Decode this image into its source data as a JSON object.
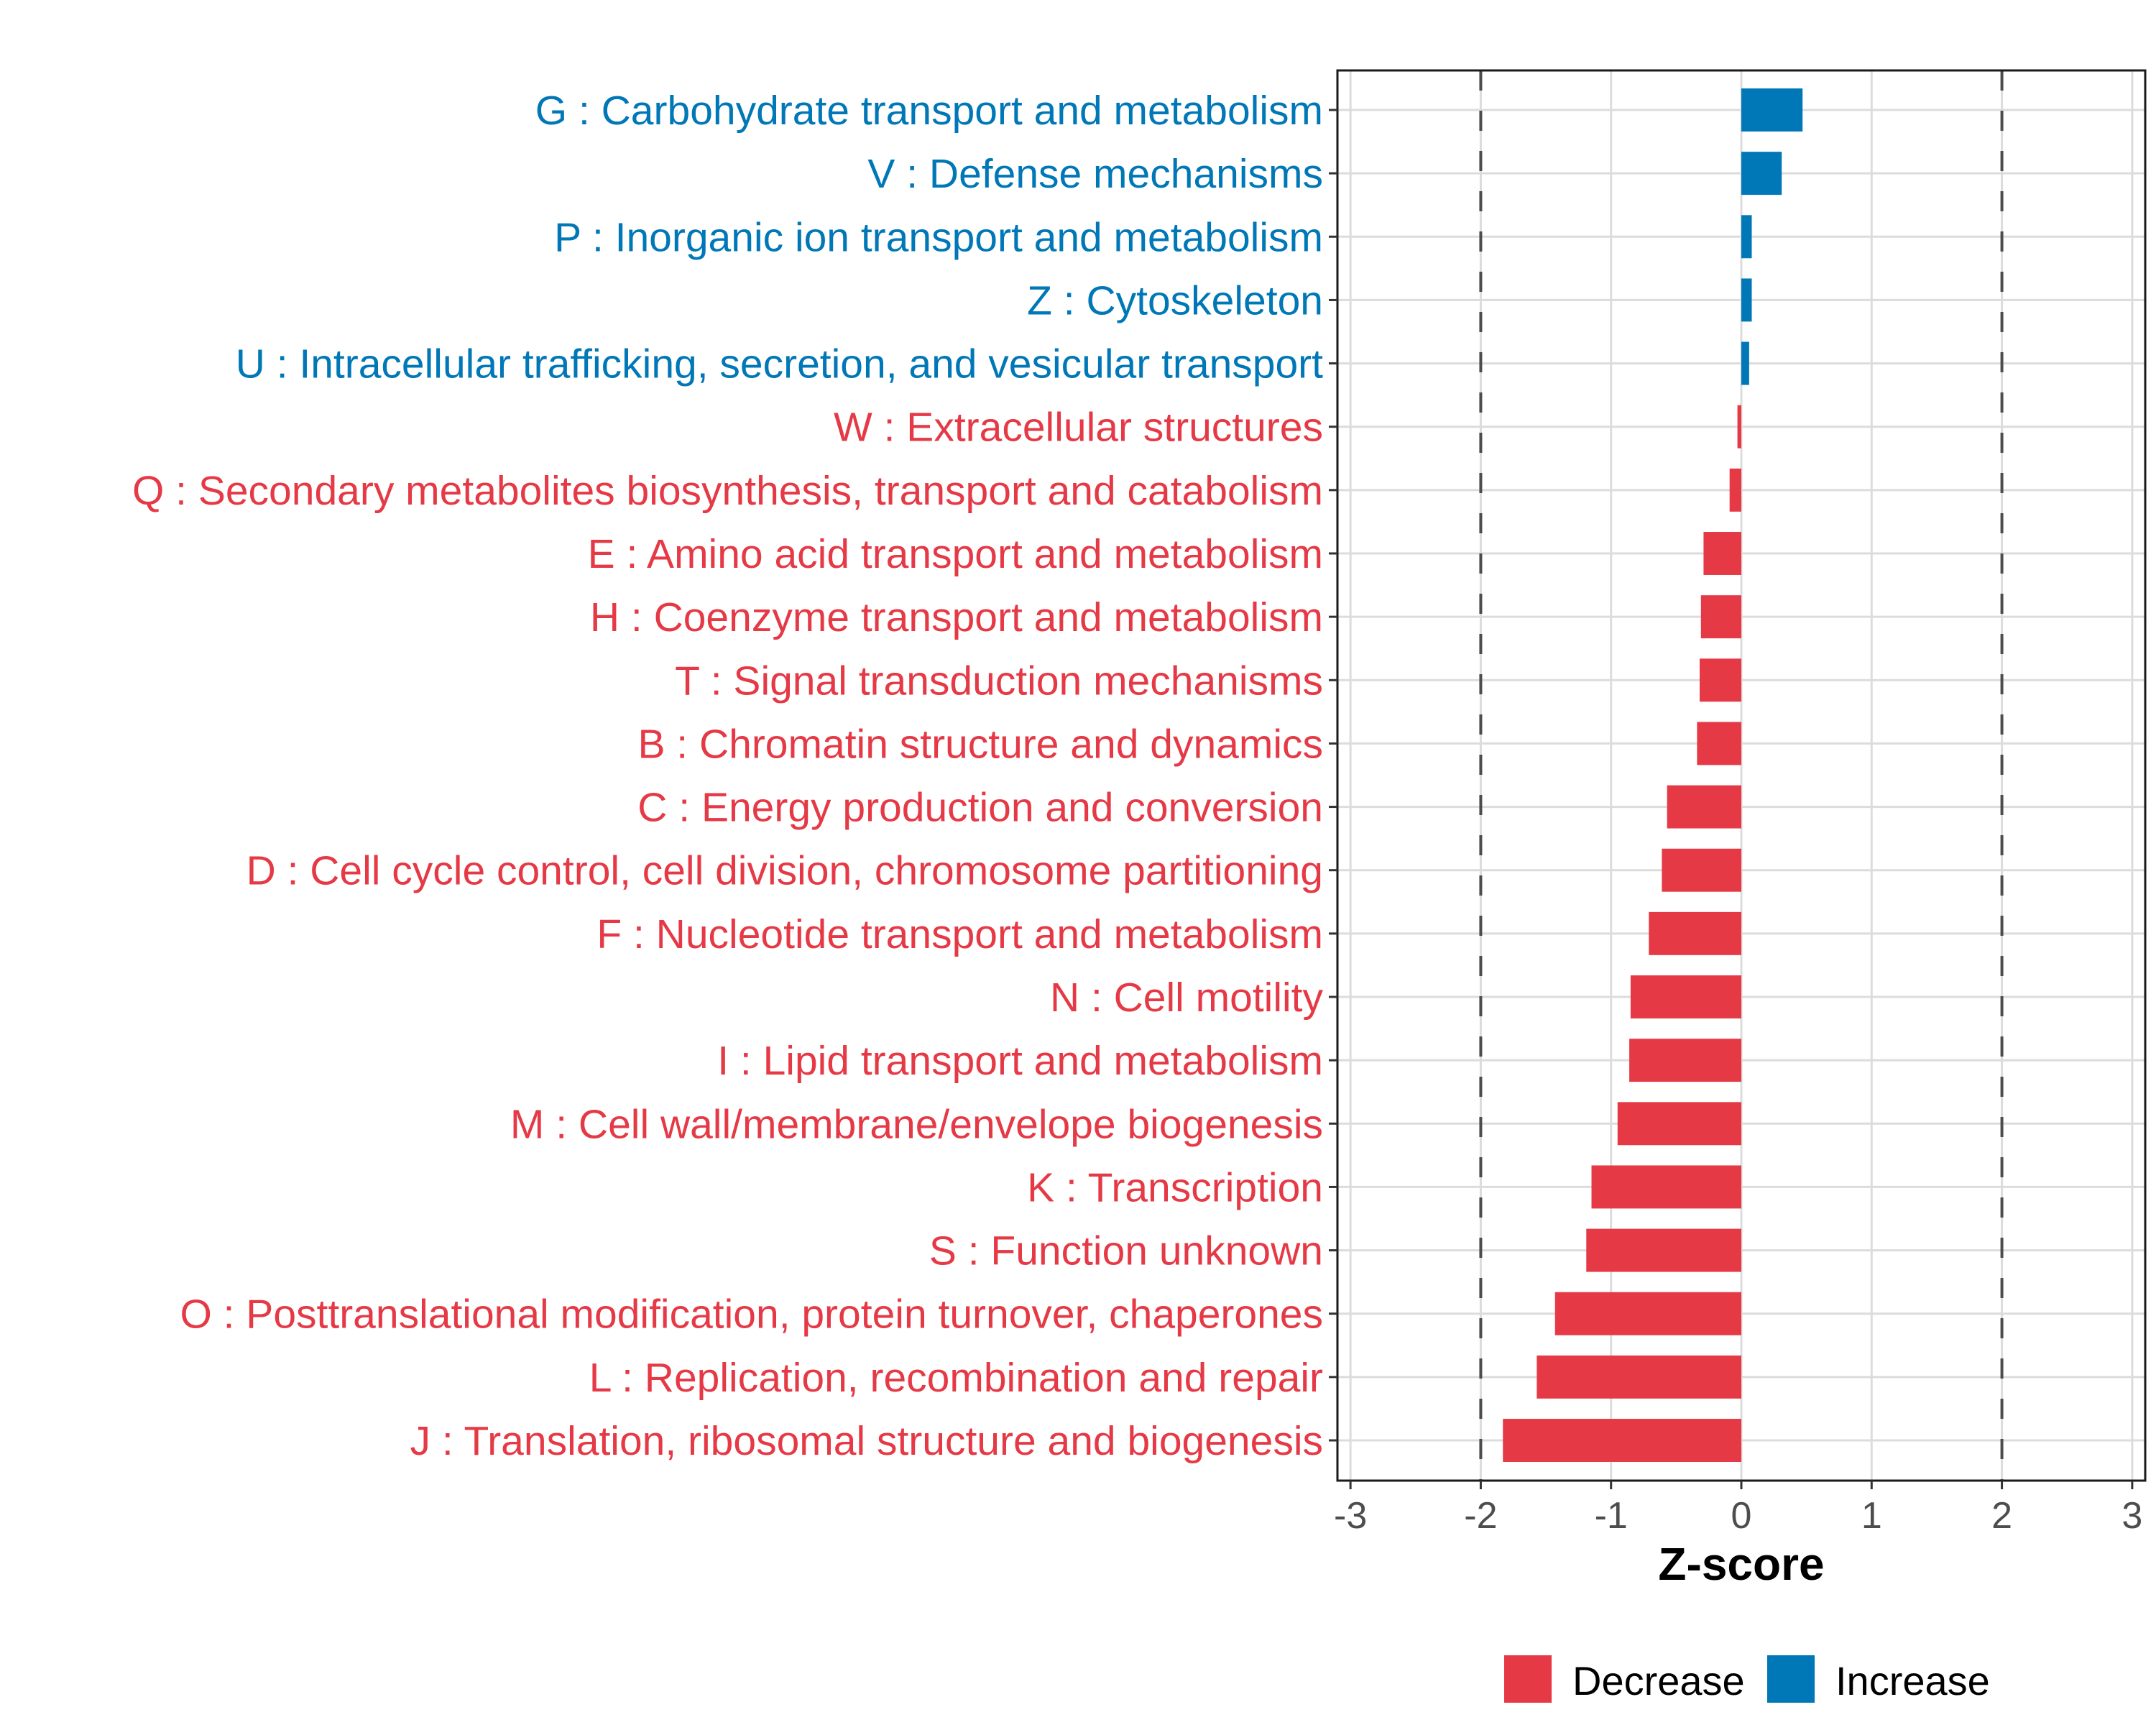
{
  "chart_data": {
    "type": "bar",
    "orientation": "horizontal",
    "title": "",
    "xlabel": "Z-score",
    "ylabel": "",
    "xlim": [
      -3.1,
      3.1
    ],
    "xticks": [
      -3,
      -2,
      -1,
      0,
      1,
      2,
      3
    ],
    "xtick_labels": [
      "-3",
      "-2",
      "-1",
      "0",
      "1",
      "2",
      "3"
    ],
    "reference_lines": [
      -2,
      2
    ],
    "grid": true,
    "categories": [
      "G : Carbohydrate transport and metabolism",
      "V : Defense mechanisms",
      "P : Inorganic ion transport and metabolism",
      "Z : Cytoskeleton",
      "U : Intracellular trafficking, secretion, and vesicular transport",
      "W : Extracellular structures",
      "Q : Secondary metabolites biosynthesis, transport and catabolism",
      "E : Amino acid transport and metabolism",
      "H : Coenzyme transport and metabolism",
      "T : Signal transduction mechanisms",
      "B : Chromatin structure and dynamics",
      "C : Energy production and conversion",
      "D : Cell cycle control, cell division, chromosome partitioning",
      "F : Nucleotide transport and metabolism",
      "N : Cell motility",
      "I : Lipid transport and metabolism",
      "M : Cell wall/membrane/envelope biogenesis",
      "K : Transcription",
      "S : Function unknown",
      "O : Posttranslational modification, protein turnover, chaperones",
      "L : Replication, recombination and repair",
      "J : Translation, ribosomal structure and biogenesis"
    ],
    "values": [
      0.47,
      0.31,
      0.08,
      0.08,
      0.06,
      -0.03,
      -0.09,
      -0.29,
      -0.31,
      -0.32,
      -0.34,
      -0.57,
      -0.61,
      -0.71,
      -0.85,
      -0.86,
      -0.95,
      -1.15,
      -1.19,
      -1.43,
      -1.57,
      -1.83
    ],
    "groups": [
      "Increase",
      "Increase",
      "Increase",
      "Increase",
      "Increase",
      "Decrease",
      "Decrease",
      "Decrease",
      "Decrease",
      "Decrease",
      "Decrease",
      "Decrease",
      "Decrease",
      "Decrease",
      "Decrease",
      "Decrease",
      "Decrease",
      "Decrease",
      "Decrease",
      "Decrease",
      "Decrease",
      "Decrease"
    ],
    "legend": {
      "position": "bottom",
      "entries": [
        {
          "label": "Decrease",
          "color": "#E63946"
        },
        {
          "label": "Increase",
          "color": "#0077B6"
        }
      ]
    },
    "colors": {
      "Decrease": "#E63946",
      "Increase": "#0077B6"
    }
  }
}
